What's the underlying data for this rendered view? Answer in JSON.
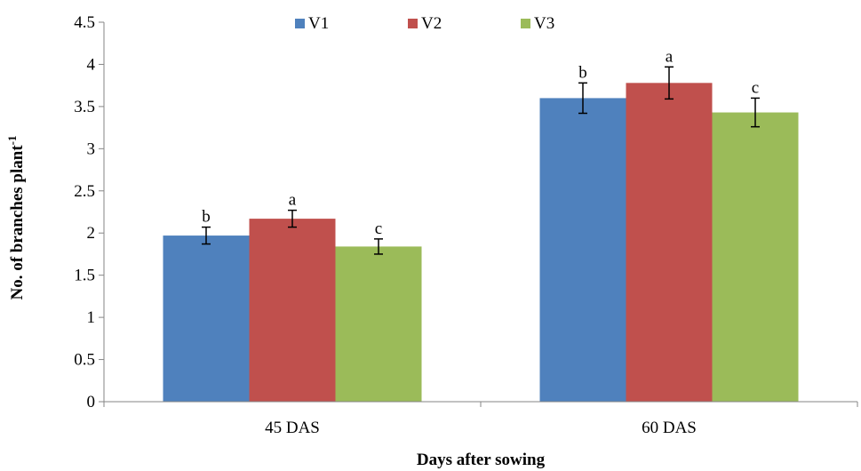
{
  "chart_data": {
    "type": "bar",
    "title": "",
    "xlabel": "Days after sowing",
    "ylabel_main": "No. of branches plant",
    "ylabel_sup": "-1",
    "categories": [
      "45 DAS",
      "60 DAS"
    ],
    "ylim": [
      0,
      4.5
    ],
    "yticks": [
      "0",
      "0.5",
      "1",
      "1.5",
      "2",
      "2.5",
      "3",
      "3.5",
      "4",
      "4.5"
    ],
    "grid": false,
    "legend_position": "top-center",
    "series": [
      {
        "name": "V1",
        "color": "#4F81BD",
        "values": [
          1.97,
          3.6
        ],
        "errors": [
          0.1,
          0.18
        ],
        "labels": [
          "b",
          "b"
        ]
      },
      {
        "name": "V2",
        "color": "#C0504D",
        "values": [
          2.17,
          3.78
        ],
        "errors": [
          0.1,
          0.19
        ],
        "labels": [
          "a",
          "a"
        ]
      },
      {
        "name": "V3",
        "color": "#9BBB59",
        "values": [
          1.84,
          3.43
        ],
        "errors": [
          0.09,
          0.17
        ],
        "labels": [
          "c",
          "c"
        ]
      }
    ]
  }
}
